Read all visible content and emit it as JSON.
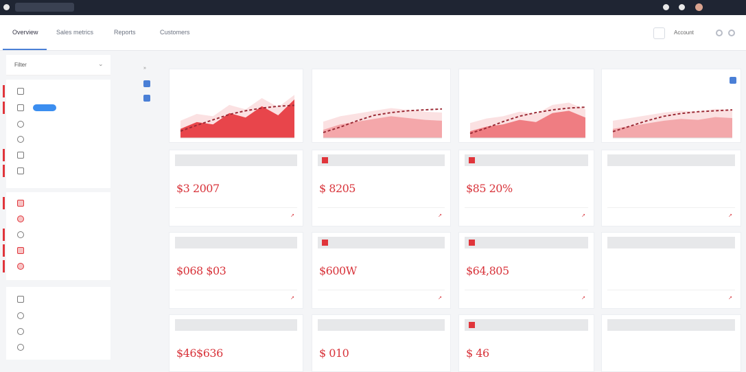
{
  "browser": {
    "url": "",
    "counter": ""
  },
  "header": {
    "tabs": [
      {
        "label": "Overview"
      },
      {
        "label": "Sales metrics"
      },
      {
        "label": "Reports"
      },
      {
        "label": "Customers"
      }
    ],
    "user_label": "Account"
  },
  "topbar": {
    "user_name": ""
  },
  "sidebar": {
    "filter_label": "Filter",
    "group1": [
      {
        "label": ""
      },
      {
        "label": ""
      },
      {
        "label": ""
      },
      {
        "label": ""
      },
      {
        "label": ""
      },
      {
        "label": ""
      }
    ],
    "group2": [
      {
        "label": ""
      },
      {
        "label": ""
      },
      {
        "label": ""
      },
      {
        "label": ""
      },
      {
        "label": ""
      }
    ],
    "group3": [
      {
        "label": ""
      },
      {
        "label": ""
      },
      {
        "label": ""
      },
      {
        "label": ""
      }
    ]
  },
  "chart_cards": [
    {
      "title": ""
    },
    {
      "title": ""
    },
    {
      "title": ""
    },
    {
      "title": ""
    }
  ],
  "chart_data": [
    {
      "type": "area",
      "title": "",
      "x": [
        0,
        1,
        2,
        3,
        4,
        5,
        6,
        7
      ],
      "series": [
        {
          "values": [
            20,
            35,
            30,
            55,
            45,
            70,
            50,
            85
          ]
        },
        {
          "values": [
            15,
            28,
            40,
            52,
            60,
            66,
            70,
            72
          ]
        }
      ]
    },
    {
      "type": "area",
      "title": "",
      "x": [
        0,
        1,
        2,
        3,
        4,
        5,
        6,
        7
      ],
      "series": [
        {
          "values": [
            18,
            30,
            36,
            42,
            48,
            44,
            40,
            38
          ]
        },
        {
          "values": [
            12,
            24,
            38,
            50,
            56,
            60,
            62,
            64
          ]
        }
      ]
    },
    {
      "type": "area",
      "title": "",
      "x": [
        0,
        1,
        2,
        3,
        4,
        5,
        6,
        7
      ],
      "series": [
        {
          "values": [
            15,
            25,
            30,
            40,
            35,
            55,
            60,
            45
          ]
        },
        {
          "values": [
            10,
            22,
            36,
            48,
            56,
            62,
            66,
            68
          ]
        }
      ]
    },
    {
      "type": "area",
      "title": "",
      "x": [
        0,
        1,
        2,
        3,
        4,
        5,
        6,
        7
      ],
      "series": [
        {
          "values": [
            20,
            26,
            32,
            38,
            42,
            40,
            46,
            44
          ]
        },
        {
          "values": [
            14,
            26,
            38,
            48,
            54,
            58,
            60,
            62
          ]
        }
      ]
    }
  ],
  "metrics": [
    {
      "value": "$3 2007"
    },
    {
      "value": "$ 8205"
    },
    {
      "value": "$85 20%"
    },
    {
      "value": ""
    },
    {
      "value": "$068 $03"
    },
    {
      "value": "$600W",
      "extra": ""
    },
    {
      "value": "$64,805"
    },
    {
      "value": ""
    },
    {
      "value": "$46$636"
    },
    {
      "value": "$ 010"
    },
    {
      "value": "$ 46"
    },
    {
      "value": ""
    }
  ],
  "colors": {
    "accent": "#e0353b",
    "link": "#4a7fd6",
    "topbar": "#1f2533"
  }
}
